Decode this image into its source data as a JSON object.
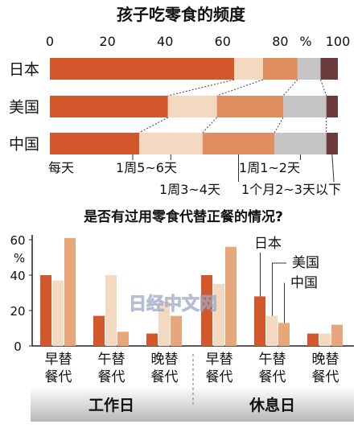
{
  "chart_data": [
    {
      "type": "bar",
      "orientation": "horizontal",
      "stacked": true,
      "title": "孩子吃零食的频度",
      "unit": "%",
      "xlim": [
        0,
        100
      ],
      "x_ticks": [
        "0",
        "20",
        "40",
        "60",
        "80",
        "100"
      ],
      "categories": [
        "日本",
        "美国",
        "中国"
      ],
      "series": [
        {
          "name": "每天",
          "values": [
            64,
            41,
            31
          ]
        },
        {
          "name": "1周5~6天",
          "values": [
            10,
            17,
            22
          ]
        },
        {
          "name": "1周3~4天",
          "values": [
            12,
            23,
            25
          ]
        },
        {
          "name": "1周1~2天",
          "values": [
            8,
            15,
            18
          ]
        },
        {
          "name": "1个月2~3天以下",
          "values": [
            6,
            4,
            4
          ]
        }
      ],
      "colors": [
        "#d2572b",
        "#f2d9bf",
        "#e08e5f",
        "#c4c4c4",
        "#6b3a3a"
      ]
    },
    {
      "type": "bar",
      "title": "是否有过用零食代替正餐的情况?",
      "unit": "%",
      "ylim": [
        0,
        60
      ],
      "y_ticks": [
        "0",
        "20",
        "40",
        "60"
      ],
      "groups": [
        "工作日",
        "休息日"
      ],
      "categories": [
        "早替餐代",
        "午替餐代",
        "晚替餐代"
      ],
      "series": [
        {
          "name": "日本",
          "values": {
            "工作日": [
              40,
              17,
              7
            ],
            "休息日": [
              40,
              28,
              7
            ]
          }
        },
        {
          "name": "美国",
          "values": {
            "工作日": [
              37,
              40,
              25
            ],
            "休息日": [
              35,
              17,
              7
            ]
          }
        },
        {
          "name": "中国",
          "values": {
            "工作日": [
              61,
              8,
              17
            ],
            "休息日": [
              56,
              13,
              12
            ]
          }
        }
      ],
      "colors": [
        "#d2572b",
        "#f2d9bf",
        "#e8a67b"
      ]
    }
  ],
  "watermark": "日经中文网"
}
